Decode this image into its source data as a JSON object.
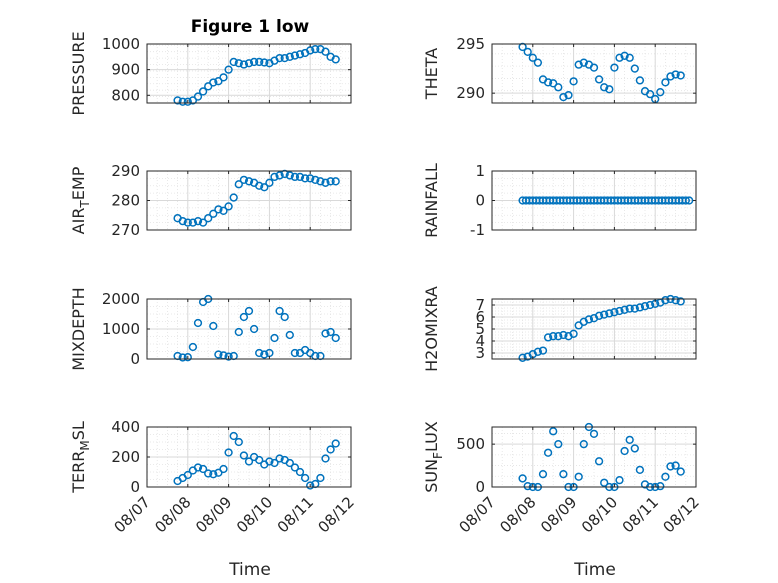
{
  "figure": {
    "title": "Figure 1 low"
  },
  "chart_data": [
    {
      "type": "scatter",
      "ylabel": "PRESSURE",
      "ylim": [
        770,
        1000
      ],
      "yticks": [
        800,
        900,
        1000
      ],
      "xlim": [
        "08/07",
        "08/12"
      ],
      "xticks": [
        "08/07",
        "08/08",
        "08/09",
        "08/10",
        "08/11",
        "08/12"
      ],
      "grid": true,
      "x": [
        "08/07 18:00",
        "08/07 21:00",
        "08/08 00:00",
        "08/08 03:00",
        "08/08 06:00",
        "08/08 09:00",
        "08/08 12:00",
        "08/08 15:00",
        "08/08 18:00",
        "08/08 21:00",
        "08/09 00:00",
        "08/09 03:00",
        "08/09 06:00",
        "08/09 09:00",
        "08/09 12:00",
        "08/09 15:00",
        "08/09 18:00",
        "08/09 21:00",
        "08/10 00:00",
        "08/10 03:00",
        "08/10 06:00",
        "08/10 09:00",
        "08/10 12:00",
        "08/10 15:00",
        "08/10 18:00",
        "08/10 21:00",
        "08/11 00:00",
        "08/11 03:00",
        "08/11 06:00",
        "08/11 09:00",
        "08/11 12:00",
        "08/11 15:00"
      ],
      "y": [
        780,
        775,
        775,
        780,
        795,
        815,
        835,
        850,
        855,
        870,
        900,
        930,
        925,
        920,
        925,
        930,
        930,
        928,
        925,
        935,
        945,
        945,
        950,
        955,
        960,
        965,
        975,
        980,
        980,
        970,
        950,
        940
      ]
    },
    {
      "type": "scatter",
      "ylabel": "THETA",
      "ylim": [
        289,
        295
      ],
      "yticks": [
        290,
        295
      ],
      "xlim": [
        "08/07",
        "08/12"
      ],
      "xticks": [
        "08/07",
        "08/08",
        "08/09",
        "08/10",
        "08/11",
        "08/12"
      ],
      "grid": true,
      "x": [
        "08/07 18:00",
        "08/07 21:00",
        "08/08 00:00",
        "08/08 03:00",
        "08/08 06:00",
        "08/08 09:00",
        "08/08 12:00",
        "08/08 15:00",
        "08/08 18:00",
        "08/08 21:00",
        "08/09 00:00",
        "08/09 03:00",
        "08/09 06:00",
        "08/09 09:00",
        "08/09 12:00",
        "08/09 15:00",
        "08/09 18:00",
        "08/09 21:00",
        "08/10 00:00",
        "08/10 03:00",
        "08/10 06:00",
        "08/10 09:00",
        "08/10 12:00",
        "08/10 15:00",
        "08/10 18:00",
        "08/10 21:00",
        "08/11 00:00",
        "08/11 03:00",
        "08/11 06:00",
        "08/11 09:00",
        "08/11 12:00",
        "08/11 15:00"
      ],
      "y": [
        294.7,
        294.2,
        293.6,
        293.1,
        291.4,
        291.1,
        291,
        290.6,
        289.6,
        289.8,
        291.2,
        292.9,
        293.1,
        292.9,
        292.6,
        291.4,
        290.6,
        290.4,
        292.6,
        293.6,
        293.8,
        293.6,
        292.5,
        291.3,
        290.2,
        289.9,
        289.4,
        290.1,
        291.1,
        291.7,
        291.9,
        291.8
      ]
    },
    {
      "type": "scatter",
      "ylabel": "AIR_TEMP",
      "ylim": [
        270,
        290
      ],
      "yticks": [
        270,
        280,
        290
      ],
      "xlim": [
        "08/07",
        "08/12"
      ],
      "xticks": [
        "08/07",
        "08/08",
        "08/09",
        "08/10",
        "08/11",
        "08/12"
      ],
      "grid": true,
      "x": [
        "08/07 18:00",
        "08/07 21:00",
        "08/08 00:00",
        "08/08 03:00",
        "08/08 06:00",
        "08/08 09:00",
        "08/08 12:00",
        "08/08 15:00",
        "08/08 18:00",
        "08/08 21:00",
        "08/09 00:00",
        "08/09 03:00",
        "08/09 06:00",
        "08/09 09:00",
        "08/09 12:00",
        "08/09 15:00",
        "08/09 18:00",
        "08/09 21:00",
        "08/10 00:00",
        "08/10 03:00",
        "08/10 06:00",
        "08/10 09:00",
        "08/10 12:00",
        "08/10 15:00",
        "08/10 18:00",
        "08/10 21:00",
        "08/11 00:00",
        "08/11 03:00",
        "08/11 06:00",
        "08/11 09:00",
        "08/11 12:00",
        "08/11 15:00"
      ],
      "y": [
        274,
        273,
        272.5,
        272.5,
        273,
        272.5,
        274,
        275.5,
        277,
        276.5,
        278,
        281,
        285.5,
        287,
        286.5,
        286,
        285,
        284.5,
        286,
        288,
        288.5,
        289,
        288.5,
        288,
        288,
        287.5,
        287.5,
        287,
        286.5,
        286,
        286.5,
        286.5
      ]
    },
    {
      "type": "scatter",
      "ylabel": "RAINFALL",
      "ylim": [
        -1,
        1
      ],
      "yticks": [
        -1,
        0,
        1
      ],
      "xlim": [
        "08/07",
        "08/12"
      ],
      "xticks": [
        "08/07",
        "08/08",
        "08/09",
        "08/10",
        "08/11",
        "08/12"
      ],
      "grid": true,
      "x_start": "08/07 18:00",
      "x_end": "08/11 20:00",
      "point_count": 50,
      "y_constant": 0
    },
    {
      "type": "scatter",
      "ylabel": "MIXDEPTH",
      "ylim": [
        0,
        2000
      ],
      "yticks": [
        0,
        1000,
        2000
      ],
      "xlim": [
        "08/07",
        "08/12"
      ],
      "xticks": [
        "08/07",
        "08/08",
        "08/09",
        "08/10",
        "08/11",
        "08/12"
      ],
      "grid": true,
      "x": [
        "08/07 18:00",
        "08/07 21:00",
        "08/08 00:00",
        "08/08 03:00",
        "08/08 06:00",
        "08/08 09:00",
        "08/08 12:00",
        "08/08 15:00",
        "08/08 18:00",
        "08/08 21:00",
        "08/09 00:00",
        "08/09 03:00",
        "08/09 06:00",
        "08/09 09:00",
        "08/09 12:00",
        "08/09 15:00",
        "08/09 18:00",
        "08/09 21:00",
        "08/10 00:00",
        "08/10 03:00",
        "08/10 06:00",
        "08/10 09:00",
        "08/10 12:00",
        "08/10 15:00",
        "08/10 18:00",
        "08/10 21:00",
        "08/11 00:00",
        "08/11 03:00",
        "08/11 06:00",
        "08/11 09:00",
        "08/11 12:00",
        "08/11 15:00"
      ],
      "y": [
        100,
        50,
        60,
        400,
        1200,
        1900,
        2000,
        1100,
        150,
        120,
        80,
        100,
        900,
        1400,
        1600,
        1000,
        200,
        150,
        200,
        700,
        1600,
        1400,
        800,
        200,
        200,
        300,
        200,
        100,
        100,
        850,
        900,
        700
      ]
    },
    {
      "type": "scatter",
      "ylabel": "H2OMIXRA",
      "ylim": [
        2.5,
        7.5
      ],
      "yticks": [
        3,
        4,
        5,
        6,
        7
      ],
      "xlim": [
        "08/07",
        "08/12"
      ],
      "xticks": [
        "08/07",
        "08/08",
        "08/09",
        "08/10",
        "08/11",
        "08/12"
      ],
      "grid": true,
      "x": [
        "08/07 18:00",
        "08/07 21:00",
        "08/08 00:00",
        "08/08 03:00",
        "08/08 06:00",
        "08/08 09:00",
        "08/08 12:00",
        "08/08 15:00",
        "08/08 18:00",
        "08/08 21:00",
        "08/09 00:00",
        "08/09 03:00",
        "08/09 06:00",
        "08/09 09:00",
        "08/09 12:00",
        "08/09 15:00",
        "08/09 18:00",
        "08/09 21:00",
        "08/10 00:00",
        "08/10 03:00",
        "08/10 06:00",
        "08/10 09:00",
        "08/10 12:00",
        "08/10 15:00",
        "08/10 18:00",
        "08/10 21:00",
        "08/11 00:00",
        "08/11 03:00",
        "08/11 06:00",
        "08/11 09:00",
        "08/11 12:00",
        "08/11 15:00"
      ],
      "y": [
        2.6,
        2.7,
        2.9,
        3.1,
        3.2,
        4.3,
        4.4,
        4.4,
        4.5,
        4.4,
        4.6,
        5.3,
        5.6,
        5.8,
        5.9,
        6.1,
        6.2,
        6.3,
        6.4,
        6.5,
        6.6,
        6.7,
        6.7,
        6.8,
        6.9,
        7.0,
        7.1,
        7.2,
        7.4,
        7.5,
        7.4,
        7.3
      ]
    },
    {
      "type": "scatter",
      "ylabel": "TERR_MSL",
      "ylim": [
        0,
        400
      ],
      "yticks": [
        0,
        200,
        400
      ],
      "xlim": [
        "08/07",
        "08/12"
      ],
      "xticks": [
        "08/07",
        "08/08",
        "08/09",
        "08/10",
        "08/11",
        "08/12"
      ],
      "grid": true,
      "x": [
        "08/07 18:00",
        "08/07 21:00",
        "08/08 00:00",
        "08/08 03:00",
        "08/08 06:00",
        "08/08 09:00",
        "08/08 12:00",
        "08/08 15:00",
        "08/08 18:00",
        "08/08 21:00",
        "08/09 00:00",
        "08/09 03:00",
        "08/09 06:00",
        "08/09 09:00",
        "08/09 12:00",
        "08/09 15:00",
        "08/09 18:00",
        "08/09 21:00",
        "08/10 00:00",
        "08/10 03:00",
        "08/10 06:00",
        "08/10 09:00",
        "08/10 12:00",
        "08/10 15:00",
        "08/10 18:00",
        "08/10 21:00",
        "08/11 00:00",
        "08/11 03:00",
        "08/11 06:00",
        "08/11 09:00",
        "08/11 12:00",
        "08/11 15:00"
      ],
      "y": [
        40,
        60,
        80,
        110,
        130,
        120,
        90,
        85,
        95,
        120,
        230,
        340,
        300,
        210,
        170,
        200,
        180,
        150,
        170,
        160,
        190,
        180,
        160,
        130,
        100,
        60,
        10,
        20,
        60,
        190,
        250,
        290
      ]
    },
    {
      "type": "scatter",
      "ylabel": "SUN_FLUX",
      "ylim": [
        0,
        700
      ],
      "yticks": [
        0,
        500
      ],
      "xlim": [
        "08/07",
        "08/12"
      ],
      "xticks": [
        "08/07",
        "08/08",
        "08/09",
        "08/10",
        "08/11",
        "08/12"
      ],
      "grid": true,
      "x": [
        "08/07 18:00",
        "08/07 21:00",
        "08/08 00:00",
        "08/08 03:00",
        "08/08 06:00",
        "08/08 09:00",
        "08/08 12:00",
        "08/08 15:00",
        "08/08 18:00",
        "08/08 21:00",
        "08/09 00:00",
        "08/09 03:00",
        "08/09 06:00",
        "08/09 09:00",
        "08/09 12:00",
        "08/09 15:00",
        "08/09 18:00",
        "08/09 21:00",
        "08/10 00:00",
        "08/10 03:00",
        "08/10 06:00",
        "08/10 09:00",
        "08/10 12:00",
        "08/10 15:00",
        "08/10 18:00",
        "08/10 21:00",
        "08/11 00:00",
        "08/11 03:00",
        "08/11 06:00",
        "08/11 09:00",
        "08/11 12:00",
        "08/11 15:00"
      ],
      "y": [
        100,
        10,
        0,
        0,
        150,
        400,
        650,
        500,
        150,
        0,
        0,
        120,
        500,
        700,
        620,
        300,
        50,
        0,
        0,
        80,
        420,
        550,
        450,
        200,
        30,
        0,
        0,
        10,
        120,
        240,
        250,
        180
      ]
    }
  ],
  "xlabel_left": "Time",
  "xlabel_right": "Time",
  "colors": {
    "marker": "#0072BD",
    "axis": "#262626",
    "grid": "#d9d9d9"
  }
}
